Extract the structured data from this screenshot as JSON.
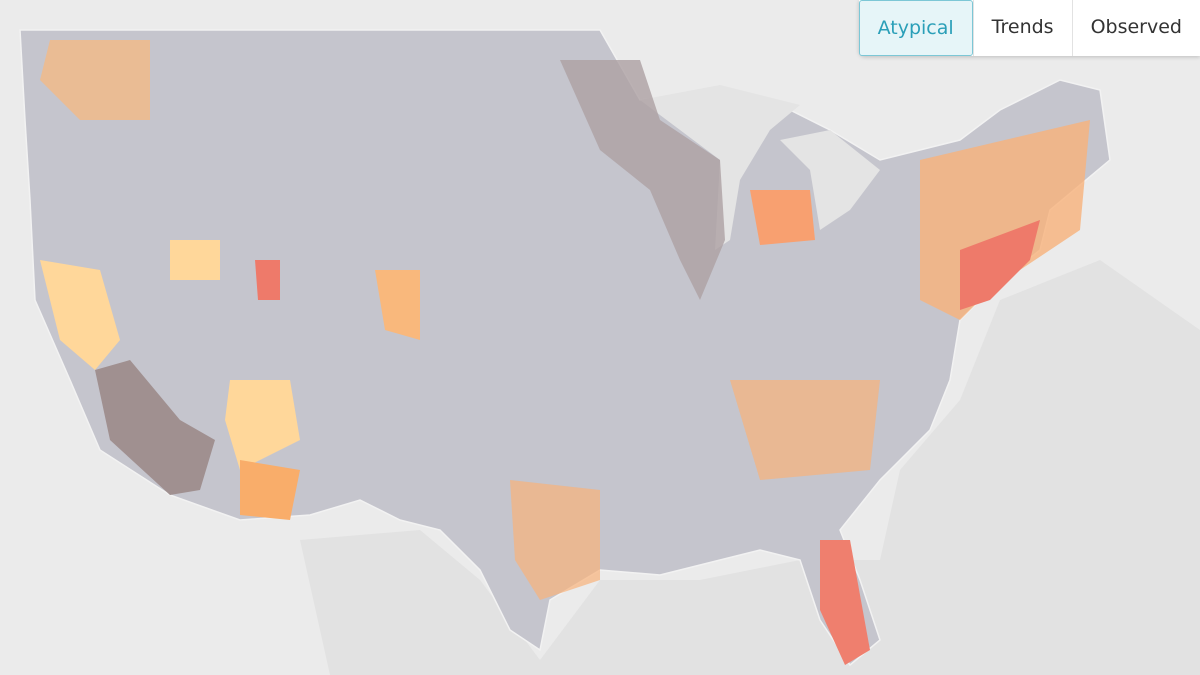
{
  "tabs": [
    "Atypical",
    "Trends",
    "Observed"
  ]
}
